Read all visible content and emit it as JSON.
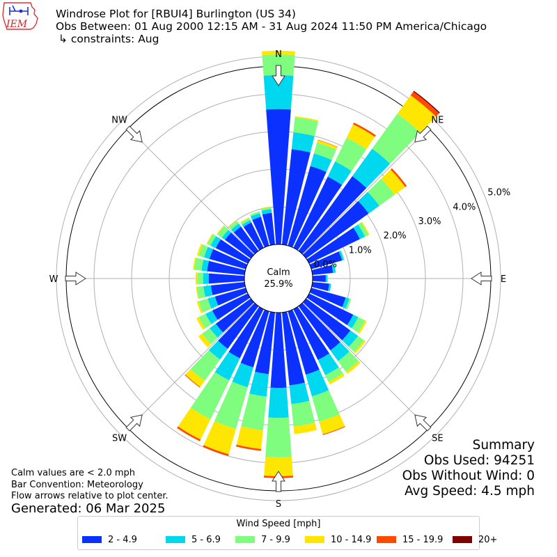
{
  "header": {
    "logo_text": "IEM",
    "title_line1": "Windrose Plot for [RBUI4] Burlington (US 34)",
    "title_line2": "Obs Between: 01 Aug 2000 12:15 AM - 31 Aug 2024 11:50 PM America/Chicago",
    "title_line3": "↳ constraints: Aug"
  },
  "summary": {
    "title": "Summary",
    "obs_used": "Obs Used: 94251",
    "obs_without_wind": "Obs Without Wind: 0",
    "avg_speed": "Avg Speed: 4.5 mph"
  },
  "notes": {
    "calm_note": "Calm values are < 2.0 mph",
    "bar_convention": "Bar Convention: Meteorology",
    "flow_arrows": "Flow arrows relative to plot center.",
    "generated": "Generated: 06 Mar 2025"
  },
  "chart_data": {
    "type": "windrose",
    "title": "Windrose Plot for [RBUI4] Burlington (US 34)",
    "calm": {
      "label": "Calm",
      "value": "25.9%"
    },
    "direction_labels": [
      "N",
      "NE",
      "E",
      "SE",
      "S",
      "SW",
      "W",
      "NW"
    ],
    "radial_axis": {
      "unit": "%",
      "max": 5.0,
      "ticks": [
        0.0,
        1.0,
        2.0,
        3.0,
        4.0,
        5.0
      ],
      "tick_labels": [
        "0.0%",
        "1.0%",
        "2.0%",
        "3.0%",
        "4.0%",
        "5.0%"
      ]
    },
    "grid": true,
    "legend": {
      "title": "Wind Speed [mph]",
      "placement": "bottom",
      "items": [
        {
          "label": "2 - 4.9",
          "color": "#0a31ff"
        },
        {
          "label": "5 - 6.9",
          "color": "#00d8f0"
        },
        {
          "label": "7 - 9.9",
          "color": "#7ffd7e"
        },
        {
          "label": "10 - 14.9",
          "color": "#ffe600"
        },
        {
          "label": "15 - 19.9",
          "color": "#ff4a00"
        },
        {
          "label": "20+",
          "color": "#800000"
        }
      ]
    },
    "series_bins": [
      "2 - 4.9",
      "5 - 6.9",
      "7 - 9.9",
      "10 - 14.9",
      "15 - 19.9",
      "20+"
    ],
    "directions_deg": [
      0,
      10,
      20,
      30,
      40,
      50,
      60,
      70,
      80,
      90,
      100,
      110,
      120,
      130,
      140,
      150,
      160,
      170,
      180,
      190,
      200,
      210,
      220,
      230,
      240,
      250,
      260,
      270,
      280,
      290,
      300,
      310,
      320,
      330,
      340,
      350
    ],
    "cumulative_percent": [
      [
        3.6,
        4.5,
        5.05,
        5.15,
        5.15,
        5.15
      ],
      [
        2.55,
        3.0,
        3.4,
        3.43,
        3.43,
        3.43
      ],
      [
        2.2,
        2.55,
        2.85,
        2.92,
        2.93,
        2.93
      ],
      [
        2.1,
        2.55,
        3.25,
        3.65,
        3.7,
        3.7
      ],
      [
        2.45,
        3.35,
        4.5,
        5.1,
        5.22,
        5.25
      ],
      [
        2.05,
        2.4,
        2.9,
        3.25,
        3.3,
        3.3
      ],
      [
        1.5,
        1.65,
        1.75,
        1.78,
        1.78,
        1.78
      ],
      [
        0.85,
        0.9,
        0.92,
        0.92,
        0.92,
        0.92
      ],
      [
        0.55,
        0.62,
        0.63,
        0.63,
        0.63,
        0.63
      ],
      [
        0.35,
        0.4,
        0.4,
        0.4,
        0.4,
        0.4
      ],
      [
        0.45,
        0.5,
        0.5,
        0.5,
        0.5,
        0.5
      ],
      [
        0.95,
        1.05,
        1.1,
        1.1,
        1.1,
        1.1
      ],
      [
        1.3,
        1.45,
        1.65,
        1.7,
        1.7,
        1.7
      ],
      [
        1.45,
        1.7,
        1.9,
        1.95,
        1.95,
        1.95
      ],
      [
        1.45,
        1.8,
        2.15,
        2.22,
        2.22,
        2.22
      ],
      [
        1.5,
        1.95,
        2.15,
        2.22,
        2.22,
        2.22
      ],
      [
        1.75,
        2.35,
        3.05,
        3.4,
        3.42,
        3.42
      ],
      [
        1.95,
        2.45,
        3.05,
        3.25,
        3.25,
        3.25
      ],
      [
        2.0,
        2.8,
        3.85,
        4.35,
        4.4,
        4.4
      ],
      [
        1.65,
        2.25,
        3.15,
        3.65,
        3.7,
        3.7
      ],
      [
        1.55,
        2.1,
        3.25,
        3.95,
        4.0,
        4.0
      ],
      [
        1.45,
        2.1,
        3.25,
        3.85,
        3.9,
        3.9
      ],
      [
        1.4,
        1.75,
        2.45,
        2.65,
        2.67,
        2.67
      ],
      [
        1.15,
        1.35,
        1.6,
        1.72,
        1.72,
        1.72
      ],
      [
        1.05,
        1.25,
        1.45,
        1.52,
        1.52,
        1.52
      ],
      [
        0.85,
        1.05,
        1.3,
        1.35,
        1.35,
        1.35
      ],
      [
        0.9,
        1.1,
        1.28,
        1.3,
        1.3,
        1.3
      ],
      [
        0.95,
        1.1,
        1.25,
        1.3,
        1.3,
        1.3
      ],
      [
        1.0,
        1.15,
        1.35,
        1.38,
        1.38,
        1.38
      ],
      [
        1.0,
        1.15,
        1.3,
        1.35,
        1.35,
        1.35
      ],
      [
        0.95,
        1.1,
        1.2,
        1.22,
        1.22,
        1.22
      ],
      [
        0.85,
        0.95,
        1.1,
        1.12,
        1.12,
        1.12
      ],
      [
        0.8,
        0.9,
        0.98,
        1.0,
        1.0,
        1.0
      ],
      [
        0.75,
        0.82,
        0.88,
        0.9,
        0.9,
        0.9
      ],
      [
        0.8,
        0.9,
        0.95,
        0.95,
        0.95,
        0.95
      ],
      [
        0.85,
        0.95,
        1.0,
        1.02,
        1.02,
        1.02
      ]
    ]
  }
}
